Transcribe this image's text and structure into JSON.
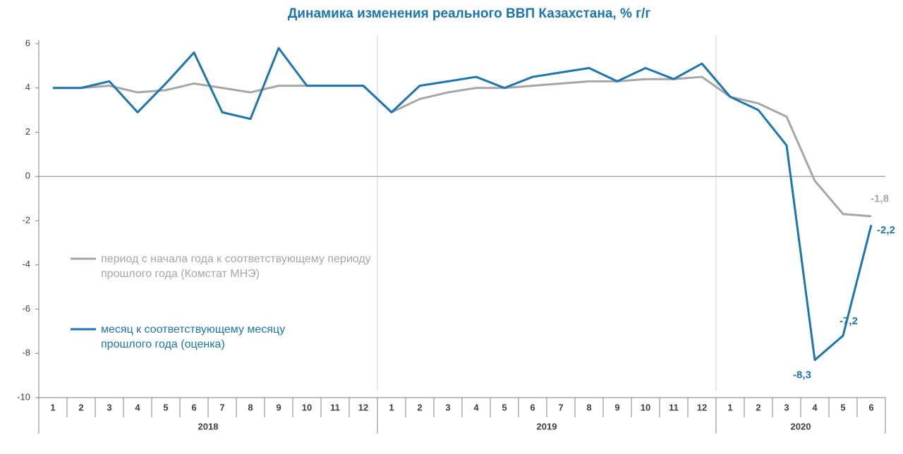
{
  "chart_data": {
    "type": "line",
    "title": "Динамика изменения реального ВВП Казахстана, % г/г",
    "categories": [
      "1",
      "2",
      "3",
      "4",
      "5",
      "6",
      "7",
      "8",
      "9",
      "10",
      "11",
      "12",
      "1",
      "2",
      "3",
      "4",
      "5",
      "6",
      "7",
      "8",
      "9",
      "10",
      "11",
      "12",
      "1",
      "2",
      "3",
      "4",
      "5",
      "6"
    ],
    "category_groups": [
      "2018",
      "2019",
      "2020"
    ],
    "ylim": [
      -10,
      6
    ],
    "yticks": [
      6,
      4,
      2,
      0,
      -2,
      -4,
      -6,
      -8,
      -10
    ],
    "series": [
      {
        "name": "период с начала года к соответствующему периоду прошлого года (Комстат МНЭ)",
        "color": "#a6a6a6",
        "values": [
          4.0,
          4.0,
          4.1,
          3.8,
          3.9,
          4.2,
          4.0,
          3.8,
          4.1,
          4.1,
          4.1,
          4.1,
          2.9,
          3.5,
          3.8,
          4.0,
          4.0,
          4.1,
          4.2,
          4.3,
          4.3,
          4.4,
          4.4,
          4.5,
          3.6,
          3.3,
          2.7,
          -0.2,
          -1.7,
          -1.8
        ],
        "value_labels": [
          null,
          null,
          null,
          null,
          null,
          null,
          null,
          null,
          null,
          null,
          null,
          null,
          null,
          null,
          null,
          null,
          null,
          null,
          null,
          null,
          null,
          null,
          null,
          null,
          null,
          null,
          null,
          null,
          null,
          "-1,8"
        ]
      },
      {
        "name": "месяц к соответствующему месяцу прошлого года (оценка)",
        "color": "#1a75b0",
        "values": [
          4.0,
          4.0,
          4.3,
          2.9,
          4.2,
          5.6,
          2.9,
          2.6,
          5.8,
          4.1,
          4.1,
          4.1,
          2.9,
          4.1,
          4.3,
          4.5,
          4.0,
          4.5,
          4.7,
          4.9,
          4.3,
          4.9,
          4.4,
          5.1,
          3.6,
          3.0,
          1.4,
          -8.3,
          -7.2,
          -2.2
        ],
        "value_labels": [
          null,
          null,
          null,
          null,
          null,
          null,
          null,
          null,
          null,
          null,
          null,
          null,
          null,
          null,
          null,
          null,
          null,
          null,
          null,
          null,
          null,
          null,
          null,
          null,
          null,
          null,
          null,
          "-8,3",
          "-7,2",
          "-2,2"
        ]
      }
    ]
  }
}
